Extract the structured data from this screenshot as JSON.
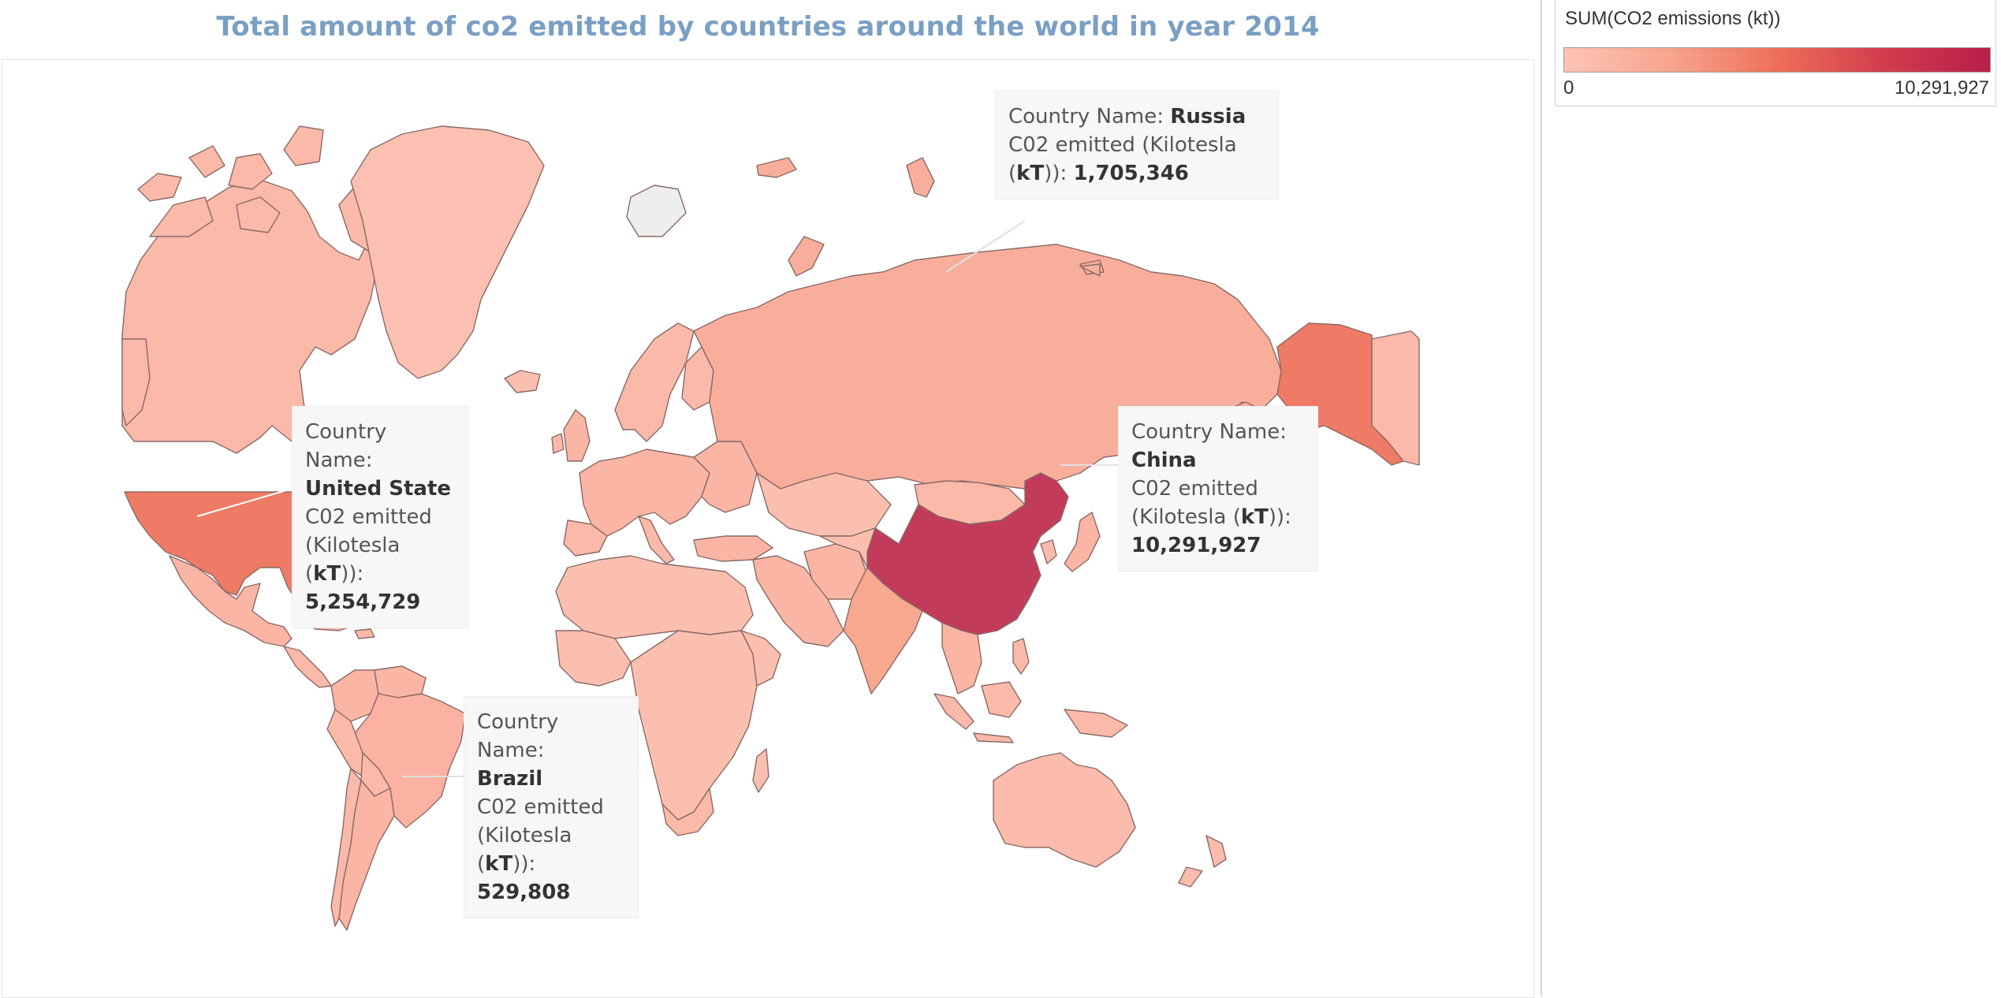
{
  "title": "Total amount of co2 emitted by countries around the world in year 2014",
  "legend": {
    "title": "SUM(CO2 emissions (kt))",
    "min_label": "0",
    "max_label": "10,291,927",
    "min": 0,
    "max": 10291927,
    "colors": [
      "#fdc4b6",
      "#f7a48e",
      "#ef6f58",
      "#d23c4d",
      "#b81e4b"
    ]
  },
  "chart_data": {
    "type": "choropleth",
    "title": "Total amount of co2 emitted by countries around the world in year 2014",
    "measure": "SUM(CO2 emissions (kt))",
    "highlighted": [
      {
        "country": "United State",
        "value": 5254729
      },
      {
        "country": "Russia",
        "value": 1705346
      },
      {
        "country": "China",
        "value": 10291927
      },
      {
        "country": "Brazil",
        "value": 529808
      }
    ]
  },
  "tooltips": {
    "label_country": "Country Name:",
    "label_co2_line1": "C02 emitted (Kilotesla (",
    "label_kT": "kT",
    "label_co2_line2": ")):",
    "usa": {
      "name": "United State",
      "value": "5,254,729"
    },
    "russia": {
      "name": "Russia",
      "value": "1,705,346"
    },
    "china": {
      "name": "China",
      "value": "10,291,927"
    },
    "brazil": {
      "name": "Brazil",
      "value": "529,808"
    }
  }
}
